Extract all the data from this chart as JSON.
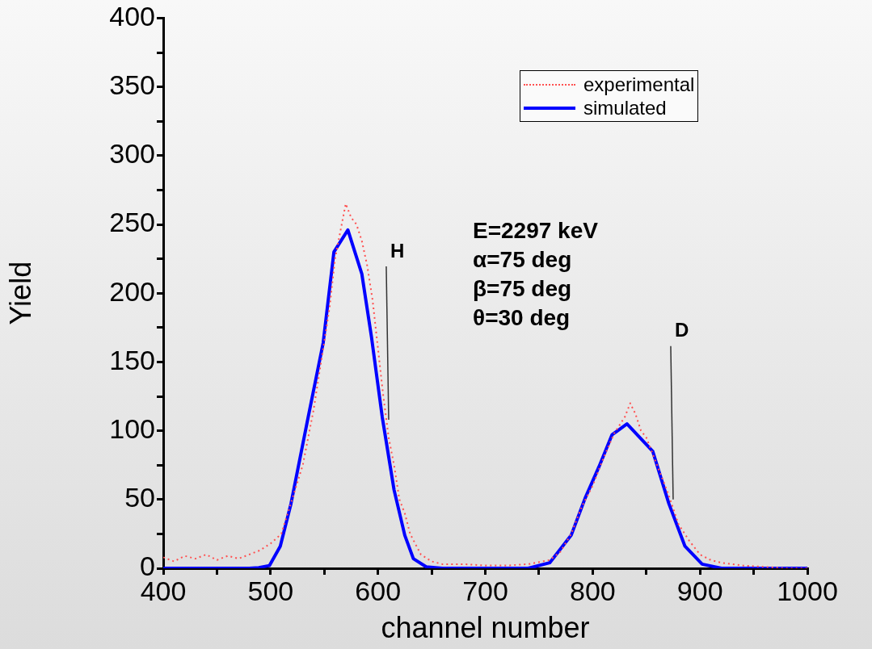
{
  "chart_data": {
    "type": "line",
    "xlabel": "channel number",
    "ylabel": "Yield",
    "xlim": [
      400,
      1000
    ],
    "ylim": [
      0,
      400
    ],
    "xticks": [
      400,
      {
        "value": 450,
        "label": null
      },
      500,
      {
        "value": 550,
        "label": null
      },
      600,
      {
        "value": 650,
        "label": null
      },
      700,
      {
        "value": 750,
        "label": null
      },
      800,
      {
        "value": 850,
        "label": null
      },
      900,
      {
        "value": 950,
        "label": null
      },
      1000
    ],
    "yticks": [
      0,
      {
        "value": 25,
        "label": null
      },
      50,
      {
        "value": 75,
        "label": null
      },
      100,
      {
        "value": 125,
        "label": null
      },
      150,
      {
        "value": 175,
        "label": null
      },
      200,
      {
        "value": 225,
        "label": null
      },
      250,
      {
        "value": 275,
        "label": null
      },
      300,
      {
        "value": 325,
        "label": null
      },
      350,
      {
        "value": 375,
        "label": null
      },
      400
    ],
    "grid": false,
    "legend": "top right",
    "marker": "none",
    "series": [
      {
        "name": "experimental",
        "color": "#ff5050",
        "line_style": "dotted",
        "x": [
          400,
          410,
          420,
          430,
          440,
          450,
          460,
          470,
          480,
          490,
          500,
          510,
          520,
          530,
          540,
          550,
          555,
          560,
          565,
          570,
          575,
          580,
          585,
          590,
          595,
          600,
          605,
          610,
          615,
          620,
          625,
          630,
          640,
          650,
          660,
          680,
          700,
          720,
          740,
          760,
          770,
          780,
          790,
          800,
          810,
          820,
          830,
          835,
          840,
          845,
          850,
          860,
          870,
          880,
          890,
          900,
          910,
          920,
          940,
          960,
          980,
          1000
        ],
        "values": [
          8,
          5,
          9,
          7,
          10,
          6,
          9,
          7,
          10,
          13,
          18,
          25,
          50,
          75,
          115,
          165,
          190,
          225,
          245,
          265,
          255,
          250,
          238,
          220,
          195,
          160,
          125,
          95,
          75,
          50,
          40,
          25,
          10,
          5,
          3,
          3,
          2,
          2,
          3,
          6,
          12,
          25,
          45,
          60,
          80,
          98,
          110,
          120,
          112,
          100,
          95,
          75,
          55,
          32,
          20,
          10,
          6,
          4,
          2,
          1,
          0,
          0
        ]
      },
      {
        "name": "simulated",
        "color": "#0000ff",
        "line_style": "solid",
        "x": [
          400,
          480,
          489,
          499,
          509,
          519,
          534,
          549,
          559,
          572,
          585,
          594,
          604,
          615,
          625,
          633,
          645,
          660,
          700,
          740,
          760,
          780,
          793,
          806,
          818,
          832,
          856,
          871,
          886,
          902,
          920,
          1000
        ],
        "values": [
          0,
          0,
          0.5,
          2,
          16,
          47,
          106,
          164,
          230,
          246,
          214,
          168,
          110,
          57,
          24,
          7,
          1,
          0,
          0,
          0,
          4,
          24,
          51,
          74,
          97,
          105,
          85,
          47,
          16,
          3,
          0,
          0
        ]
      }
    ],
    "annotations": [
      {
        "text": "H",
        "x": 610,
        "y": 108
      },
      {
        "text": "D",
        "x": 875,
        "y": 50
      },
      "E=2297 keV",
      "α=75 deg",
      "β=75 deg",
      "θ=30 deg"
    ]
  }
}
